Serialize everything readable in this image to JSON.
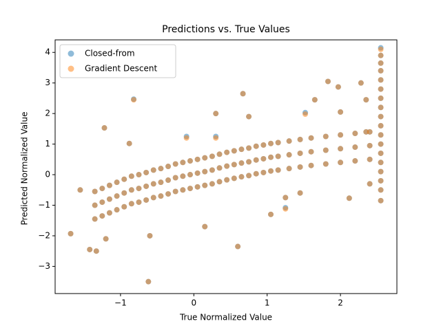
{
  "chart_data": {
    "type": "scatter",
    "title": "Predictions vs. True Values",
    "x_label": "True Normalized Value",
    "y_label": "Predicted Normalized Value",
    "xlim": [
      -1.892,
      2.77
    ],
    "ylim": [
      -3.89,
      4.41
    ],
    "xticks": [
      {
        "value": -1,
        "label": "−1"
      },
      0,
      1,
      2
    ],
    "yticks": [
      {
        "value": -3,
        "label": "−3"
      },
      {
        "value": -2,
        "label": "−2"
      },
      {
        "value": -1,
        "label": "−1"
      },
      0,
      1,
      2,
      3,
      4
    ],
    "legend": "upper left",
    "alpha": 0.5,
    "series": [
      {
        "name": "Closed-from",
        "color": "#1f77b4",
        "x": [
          -1.35,
          -1.35,
          -1.35,
          -1.25,
          -1.25,
          -1.25,
          -1.15,
          -1.15,
          -1.15,
          -1.05,
          -1.05,
          -1.05,
          -0.95,
          -0.95,
          -0.95,
          -0.85,
          -0.85,
          -0.85,
          -0.75,
          -0.75,
          -0.75,
          -0.65,
          -0.65,
          -0.65,
          -0.55,
          -0.55,
          -0.55,
          -0.45,
          -0.45,
          -0.45,
          -0.35,
          -0.35,
          -0.35,
          -0.25,
          -0.25,
          -0.25,
          -0.15,
          -0.15,
          -0.15,
          -0.05,
          -0.05,
          -0.05,
          0.05,
          0.05,
          0.05,
          0.15,
          0.15,
          0.15,
          0.25,
          0.25,
          0.25,
          0.35,
          0.35,
          0.35,
          0.45,
          0.45,
          0.45,
          0.55,
          0.55,
          0.55,
          0.65,
          0.65,
          0.65,
          0.75,
          0.75,
          0.75,
          0.85,
          0.85,
          0.85,
          0.95,
          0.95,
          0.95,
          1.05,
          1.05,
          1.05,
          1.15,
          1.15,
          1.15,
          1.3,
          1.3,
          1.3,
          1.45,
          1.45,
          1.45,
          1.6,
          1.6,
          1.6,
          1.8,
          1.8,
          1.8,
          2.0,
          2.0,
          2.0,
          2.2,
          2.2,
          2.2,
          2.4,
          2.4,
          2.4,
          -1.68,
          -1.55,
          -1.42,
          -1.33,
          -1.2,
          -1.22,
          -0.82,
          -0.88,
          -0.62,
          -0.6,
          -0.1,
          0.15,
          0.3,
          0.3,
          0.6,
          0.67,
          0.75,
          1.05,
          1.25,
          1.25,
          1.52,
          1.65,
          1.83,
          1.97,
          2.0,
          2.12,
          2.28,
          2.35,
          2.4,
          2.35,
          1.45,
          2.55,
          2.55,
          2.55,
          2.55,
          2.55,
          2.55,
          2.55,
          2.55,
          2.55,
          2.55,
          2.55,
          2.55,
          2.55,
          2.55,
          2.55,
          2.55,
          2.55,
          2.55
        ],
        "values": [
          -0.55,
          -1.0,
          -1.45,
          -0.45,
          -0.9,
          -1.35,
          -0.35,
          -0.8,
          -1.25,
          -0.25,
          -0.7,
          -1.15,
          -0.15,
          -0.6,
          -1.05,
          -0.05,
          -0.5,
          -0.95,
          0.0,
          -0.45,
          -0.9,
          0.07,
          -0.38,
          -0.83,
          0.15,
          -0.3,
          -0.75,
          0.2,
          -0.25,
          -0.7,
          0.27,
          -0.18,
          -0.63,
          0.35,
          -0.1,
          -0.55,
          0.4,
          -0.05,
          -0.5,
          0.45,
          0,
          -0.45,
          0.5,
          0.05,
          -0.4,
          0.55,
          0.1,
          -0.35,
          0.6,
          0.15,
          -0.3,
          0.67,
          0.22,
          -0.23,
          0.73,
          0.28,
          -0.17,
          0.78,
          0.33,
          -0.12,
          0.83,
          0.38,
          -0.07,
          0.87,
          0.42,
          -0.03,
          0.93,
          0.48,
          0.03,
          0.97,
          0.52,
          0.07,
          1.02,
          0.57,
          0.12,
          1.05,
          0.6,
          0.15,
          1.1,
          0.65,
          0.2,
          1.15,
          0.7,
          0.25,
          1.2,
          0.75,
          0.3,
          1.25,
          0.8,
          0.35,
          1.3,
          0.85,
          0.4,
          1.35,
          0.9,
          0.45,
          1.4,
          0.95,
          0.5,
          -1.93,
          -0.5,
          -2.45,
          -2.5,
          -2.1,
          1.53,
          2.47,
          1.02,
          -3.5,
          -2.0,
          1.25,
          -1.7,
          2.0,
          1.25,
          -2.35,
          2.65,
          1.9,
          -1.3,
          -1.08,
          -0.75,
          2.03,
          2.45,
          3.05,
          2.87,
          2.05,
          -0.77,
          3.0,
          2.45,
          -0.3,
          1.4,
          -0.6,
          -0.85,
          -0.5,
          -0.2,
          0.1,
          0.4,
          0.7,
          1.0,
          1.3,
          1.6,
          1.9,
          2.2,
          2.5,
          2.8,
          3.1,
          3.4,
          3.65,
          3.9,
          4.15
        ]
      },
      {
        "name": "Gradient Descent",
        "color": "#ff7f0e",
        "x": [
          -1.35,
          -1.35,
          -1.35,
          -1.25,
          -1.25,
          -1.25,
          -1.15,
          -1.15,
          -1.15,
          -1.05,
          -1.05,
          -1.05,
          -0.95,
          -0.95,
          -0.95,
          -0.85,
          -0.85,
          -0.85,
          -0.75,
          -0.75,
          -0.75,
          -0.65,
          -0.65,
          -0.65,
          -0.55,
          -0.55,
          -0.55,
          -0.45,
          -0.45,
          -0.45,
          -0.35,
          -0.35,
          -0.35,
          -0.25,
          -0.25,
          -0.25,
          -0.15,
          -0.15,
          -0.15,
          -0.05,
          -0.05,
          -0.05,
          0.05,
          0.05,
          0.05,
          0.15,
          0.15,
          0.15,
          0.25,
          0.25,
          0.25,
          0.35,
          0.35,
          0.35,
          0.45,
          0.45,
          0.45,
          0.55,
          0.55,
          0.55,
          0.65,
          0.65,
          0.65,
          0.75,
          0.75,
          0.75,
          0.85,
          0.85,
          0.85,
          0.95,
          0.95,
          0.95,
          1.05,
          1.05,
          1.05,
          1.15,
          1.15,
          1.15,
          1.3,
          1.3,
          1.3,
          1.45,
          1.45,
          1.45,
          1.6,
          1.6,
          1.6,
          1.8,
          1.8,
          1.8,
          2.0,
          2.0,
          2.0,
          2.2,
          2.2,
          2.2,
          2.4,
          2.4,
          2.4,
          -1.68,
          -1.55,
          -1.42,
          -1.33,
          -1.2,
          -1.22,
          -0.82,
          -0.88,
          -0.62,
          -0.6,
          -0.1,
          0.15,
          0.3,
          0.3,
          0.6,
          0.67,
          0.75,
          1.05,
          1.25,
          1.25,
          1.52,
          1.65,
          1.83,
          1.97,
          2.0,
          2.12,
          2.28,
          2.35,
          2.4,
          2.35,
          1.45,
          2.55,
          2.55,
          2.55,
          2.55,
          2.55,
          2.55,
          2.55,
          2.55,
          2.55,
          2.55,
          2.55,
          2.55,
          2.55,
          2.55,
          2.55,
          2.55,
          2.55,
          2.55
        ],
        "values": [
          -0.55,
          -1.0,
          -1.45,
          -0.45,
          -0.9,
          -1.35,
          -0.35,
          -0.8,
          -1.25,
          -0.25,
          -0.7,
          -1.15,
          -0.15,
          -0.6,
          -1.05,
          -0.05,
          -0.5,
          -0.95,
          0.0,
          -0.45,
          -0.9,
          0.07,
          -0.38,
          -0.83,
          0.15,
          -0.3,
          -0.75,
          0.2,
          -0.25,
          -0.7,
          0.27,
          -0.18,
          -0.63,
          0.35,
          -0.1,
          -0.55,
          0.4,
          -0.05,
          -0.5,
          0.45,
          0,
          -0.45,
          0.5,
          0.05,
          -0.4,
          0.55,
          0.1,
          -0.35,
          0.6,
          0.15,
          -0.3,
          0.67,
          0.22,
          -0.23,
          0.73,
          0.28,
          -0.17,
          0.78,
          0.33,
          -0.12,
          0.83,
          0.38,
          -0.07,
          0.87,
          0.42,
          -0.03,
          0.93,
          0.48,
          0.03,
          0.97,
          0.52,
          0.07,
          1.02,
          0.57,
          0.12,
          1.05,
          0.6,
          0.15,
          1.1,
          0.65,
          0.2,
          1.15,
          0.7,
          0.25,
          1.2,
          0.75,
          0.3,
          1.25,
          0.8,
          0.35,
          1.3,
          0.85,
          0.4,
          1.35,
          0.9,
          0.45,
          1.4,
          0.95,
          0.5,
          -1.93,
          -0.5,
          -2.45,
          -2.5,
          -2.1,
          1.53,
          2.45,
          1.02,
          -3.5,
          -2.0,
          1.2,
          -1.7,
          2.0,
          1.2,
          -2.35,
          2.65,
          1.9,
          -1.3,
          -1.12,
          -0.75,
          1.98,
          2.45,
          3.05,
          2.87,
          2.05,
          -0.77,
          3.0,
          2.45,
          -0.3,
          1.4,
          -0.6,
          -0.85,
          -0.5,
          -0.2,
          0.1,
          0.4,
          0.7,
          1.0,
          1.3,
          1.6,
          1.9,
          2.2,
          2.5,
          2.8,
          3.1,
          3.4,
          3.65,
          3.9,
          4.1
        ]
      }
    ]
  }
}
